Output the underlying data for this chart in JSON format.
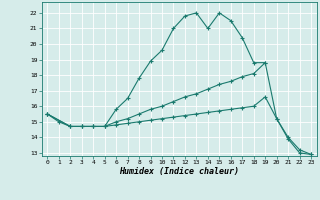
{
  "background_color": "#d6ecea",
  "grid_color": "#ffffff",
  "line_color": "#1a7a6e",
  "xlabel": "Humidex (Indice chaleur)",
  "xlim": [
    -0.5,
    23.5
  ],
  "ylim": [
    12.8,
    22.7
  ],
  "yticks": [
    13,
    14,
    15,
    16,
    17,
    18,
    19,
    20,
    21,
    22
  ],
  "xticks": [
    0,
    1,
    2,
    3,
    4,
    5,
    6,
    7,
    8,
    9,
    10,
    11,
    12,
    13,
    14,
    15,
    16,
    17,
    18,
    19,
    20,
    21,
    22,
    23
  ],
  "line1_x": [
    0,
    1,
    2,
    3,
    4,
    5,
    6,
    7,
    8,
    9,
    10,
    11,
    12,
    13,
    14,
    15,
    16,
    17,
    18,
    19
  ],
  "line1_y": [
    15.5,
    15.0,
    14.7,
    14.7,
    14.7,
    14.7,
    15.8,
    16.5,
    17.8,
    18.9,
    19.6,
    21.0,
    21.8,
    22.0,
    21.0,
    22.0,
    21.5,
    20.4,
    18.8,
    18.8
  ],
  "line2_x": [
    0,
    2,
    3,
    4,
    5,
    6,
    7,
    8,
    9,
    10,
    11,
    12,
    13,
    14,
    15,
    16,
    17,
    18,
    19,
    20,
    21,
    22,
    23
  ],
  "line2_y": [
    15.5,
    14.7,
    14.7,
    14.7,
    14.7,
    15.0,
    15.2,
    15.5,
    15.8,
    16.0,
    16.3,
    16.6,
    16.8,
    17.1,
    17.4,
    17.6,
    17.9,
    18.1,
    18.8,
    15.2,
    13.9,
    13.0,
    12.9
  ],
  "line3_x": [
    0,
    2,
    3,
    4,
    5,
    6,
    7,
    8,
    9,
    10,
    11,
    12,
    13,
    14,
    15,
    16,
    17,
    18,
    19,
    20,
    21,
    22,
    23
  ],
  "line3_y": [
    15.5,
    14.7,
    14.7,
    14.7,
    14.7,
    14.8,
    14.9,
    15.0,
    15.1,
    15.2,
    15.3,
    15.4,
    15.5,
    15.6,
    15.7,
    15.8,
    15.9,
    16.0,
    16.6,
    15.2,
    14.0,
    13.2,
    12.9
  ],
  "tick_fontsize": 4.5,
  "xlabel_fontsize": 6.0,
  "marker_size": 3.0,
  "line_width": 0.8
}
